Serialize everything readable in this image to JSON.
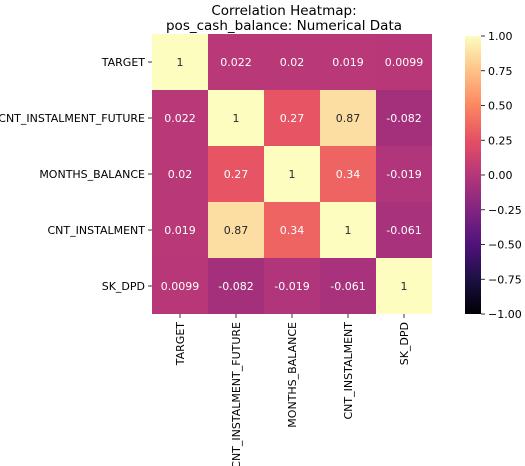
{
  "chart_data": {
    "type": "heatmap",
    "title": [
      "Correlation Heatmap:",
      "pos_cash_balance: Numerical Data"
    ],
    "rows": [
      "TARGET",
      "CNT_INSTALMENT_FUTURE",
      "MONTHS_BALANCE",
      "CNT_INSTALMENT",
      "SK_DPD"
    ],
    "columns": [
      "TARGET",
      "CNT_INSTALMENT_FUTURE",
      "MONTHS_BALANCE",
      "CNT_INSTALMENT",
      "SK_DPD"
    ],
    "values": [
      [
        1,
        0.022,
        0.02,
        0.019,
        0.0099
      ],
      [
        0.022,
        1,
        0.27,
        0.87,
        -0.082
      ],
      [
        0.02,
        0.27,
        1,
        0.34,
        -0.019
      ],
      [
        0.019,
        0.87,
        0.34,
        1,
        -0.061
      ],
      [
        0.0099,
        -0.082,
        -0.019,
        -0.061,
        1
      ]
    ],
    "value_labels": [
      [
        "1",
        "0.022",
        "0.02",
        "0.019",
        "0.0099"
      ],
      [
        "0.022",
        "1",
        "0.27",
        "0.87",
        "-0.082"
      ],
      [
        "0.02",
        "0.27",
        "1",
        "0.34",
        "-0.019"
      ],
      [
        "0.019",
        "0.87",
        "0.34",
        "1",
        "-0.061"
      ],
      [
        "0.0099",
        "-0.082",
        "-0.019",
        "-0.061",
        "1"
      ]
    ],
    "colormap": "magma",
    "vmin": -1,
    "vmax": 1,
    "colorbar_ticks": [
      "1.00",
      "0.75",
      "0.50",
      "0.25",
      "0.00",
      "−0.25",
      "−0.50",
      "−0.75",
      "−1.00"
    ]
  }
}
